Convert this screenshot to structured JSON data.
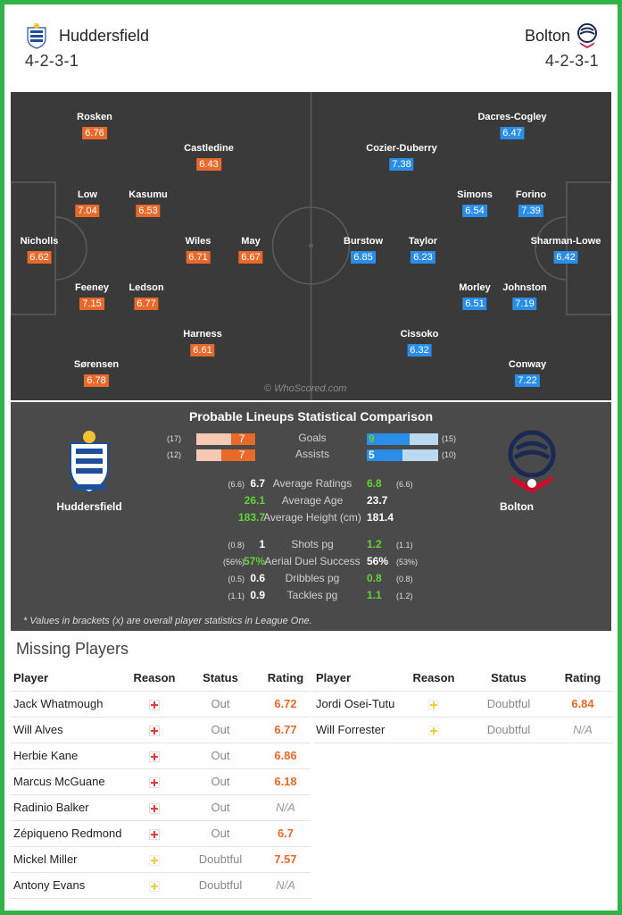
{
  "header": {
    "home": {
      "name": "Huddersfield",
      "formation": "4-2-3-1",
      "crest_icon": "huddersfield-crest-icon"
    },
    "away": {
      "name": "Bolton",
      "formation": "4-2-3-1",
      "crest_icon": "bolton-crest-icon"
    }
  },
  "pitch": {
    "watermark": "© WhoScored.com",
    "home_players": [
      {
        "name": "Nicholls",
        "rating": "6.62"
      },
      {
        "name": "Rosken",
        "rating": "6.76"
      },
      {
        "name": "Low",
        "rating": "7.04"
      },
      {
        "name": "Feeney",
        "rating": "7.15"
      },
      {
        "name": "Sørensen",
        "rating": "6.78"
      },
      {
        "name": "Kasumu",
        "rating": "6.53"
      },
      {
        "name": "Ledson",
        "rating": "6.77"
      },
      {
        "name": "Castledine",
        "rating": "6.43"
      },
      {
        "name": "Wiles",
        "rating": "6.71"
      },
      {
        "name": "Harness",
        "rating": "6.61"
      },
      {
        "name": "May",
        "rating": "6.67"
      }
    ],
    "away_players": [
      {
        "name": "Sharman-Lowe",
        "rating": "6.42"
      },
      {
        "name": "Dacres-Cogley",
        "rating": "6.47"
      },
      {
        "name": "Forino",
        "rating": "7.39"
      },
      {
        "name": "Johnston",
        "rating": "7.19"
      },
      {
        "name": "Conway",
        "rating": "7.22"
      },
      {
        "name": "Simons",
        "rating": "6.54"
      },
      {
        "name": "Morley",
        "rating": "6.51"
      },
      {
        "name": "Cozier-Duberry",
        "rating": "7.38"
      },
      {
        "name": "Taylor",
        "rating": "6.23"
      },
      {
        "name": "Cissoko",
        "rating": "6.32"
      },
      {
        "name": "Burstow",
        "rating": "6.85"
      }
    ]
  },
  "comparison": {
    "title": "Probable Lineups Statistical Comparison",
    "home_team": "Huddersfield",
    "away_team": "Bolton",
    "bars": [
      {
        "label": "Goals",
        "home": "7",
        "home_overall": "(17)",
        "home_fraction": 0.41,
        "away": "9",
        "away_overall": "(15)",
        "away_fraction": 0.6
      },
      {
        "label": "Assists",
        "home": "7",
        "home_overall": "(12)",
        "home_fraction": 0.58,
        "away": "5",
        "away_overall": "(10)",
        "away_fraction": 0.5
      }
    ],
    "stats_a": [
      {
        "label": "Average Ratings",
        "home": "6.7",
        "home_overall": "(6.6)",
        "home_green": false,
        "away": "6.8",
        "away_overall": "(6.6)",
        "away_green": true
      },
      {
        "label": "Average Age",
        "home": "26.1",
        "home_overall": "",
        "home_green": true,
        "away": "23.7",
        "away_overall": "",
        "away_green": false
      },
      {
        "label": "Average Height (cm)",
        "home": "183.7",
        "home_overall": "",
        "home_green": true,
        "away": "181.4",
        "away_overall": "",
        "away_green": false
      }
    ],
    "stats_b": [
      {
        "label": "Shots pg",
        "home": "1",
        "home_overall": "(0.8)",
        "home_green": false,
        "away": "1.2",
        "away_overall": "(1.1)",
        "away_green": true
      },
      {
        "label": "Aerial Duel Success",
        "home": "57%",
        "home_overall": "(56%)",
        "home_green": true,
        "away": "56%",
        "away_overall": "(53%)",
        "away_green": false
      },
      {
        "label": "Dribbles pg",
        "home": "0.6",
        "home_overall": "(0.5)",
        "home_green": false,
        "away": "0.8",
        "away_overall": "(0.8)",
        "away_green": true
      },
      {
        "label": "Tackles pg",
        "home": "0.9",
        "home_overall": "(1.1)",
        "home_green": false,
        "away": "1.1",
        "away_overall": "(1.2)",
        "away_green": true
      }
    ],
    "footnote": "* Values in brackets (x) are overall player statistics in League One."
  },
  "missing": {
    "title": "Missing Players",
    "columns": {
      "player": "Player",
      "reason": "Reason",
      "status": "Status",
      "rating": "Rating"
    },
    "home": [
      {
        "player": "Jack Whatmough",
        "reason": "injury",
        "status": "Out",
        "rating": "6.72"
      },
      {
        "player": "Will Alves",
        "reason": "injury",
        "status": "Out",
        "rating": "6.77"
      },
      {
        "player": "Herbie Kane",
        "reason": "injury",
        "status": "Out",
        "rating": "6.86"
      },
      {
        "player": "Marcus McGuane",
        "reason": "injury",
        "status": "Out",
        "rating": "6.18"
      },
      {
        "player": "Radinio Balker",
        "reason": "injury",
        "status": "Out",
        "rating": "N/A"
      },
      {
        "player": "Zépiqueno Redmond",
        "reason": "injury",
        "status": "Out",
        "rating": "6.7"
      },
      {
        "player": "Mickel Miller",
        "reason": "doubtful",
        "status": "Doubtful",
        "rating": "7.57"
      },
      {
        "player": "Antony Evans",
        "reason": "doubtful",
        "status": "Doubtful",
        "rating": "N/A"
      }
    ],
    "away": [
      {
        "player": "Jordi Osei-Tutu",
        "reason": "doubtful",
        "status": "Doubtful",
        "rating": "6.84"
      },
      {
        "player": "Will Forrester",
        "reason": "doubtful",
        "status": "Doubtful",
        "rating": "N/A"
      }
    ]
  }
}
